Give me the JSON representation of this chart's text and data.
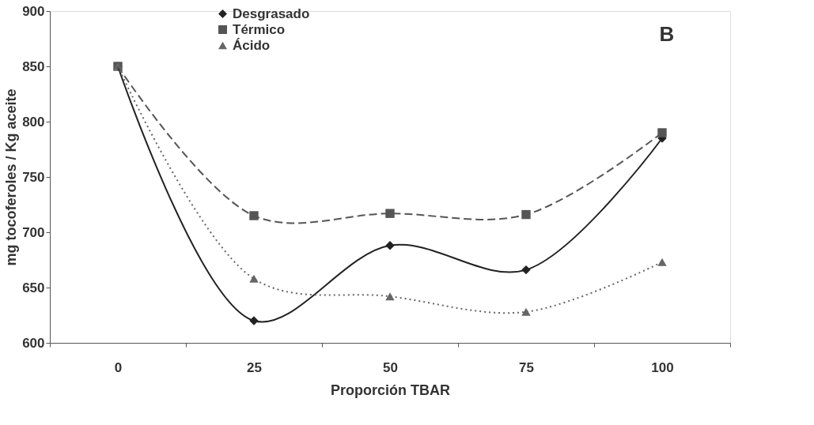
{
  "chart_data": {
    "type": "line",
    "xlabel": "Proporción TBAR",
    "ylabel": "mg tocoferoles / Kg aceite",
    "annotations": [
      "B"
    ],
    "categories": [
      "0",
      "25",
      "50",
      "75",
      "100"
    ],
    "ylim": [
      600,
      900
    ],
    "yticks": [
      600,
      650,
      700,
      750,
      800,
      850,
      900
    ],
    "grid": false,
    "legend": "top left",
    "series": [
      {
        "name": "Desgrasado",
        "color": "#222222",
        "marker": "diamond",
        "line_style": "solid",
        "values": [
          850,
          620,
          688,
          666,
          785
        ]
      },
      {
        "name": "Térmico",
        "color": "#555555",
        "marker": "square",
        "line_style": "dashed",
        "values": [
          850,
          715,
          717,
          716,
          790
        ]
      },
      {
        "name": "Ácido",
        "color": "#666666",
        "marker": "triangle",
        "line_style": "dotted",
        "values": [
          850,
          658,
          642,
          628,
          673
        ]
      }
    ]
  }
}
